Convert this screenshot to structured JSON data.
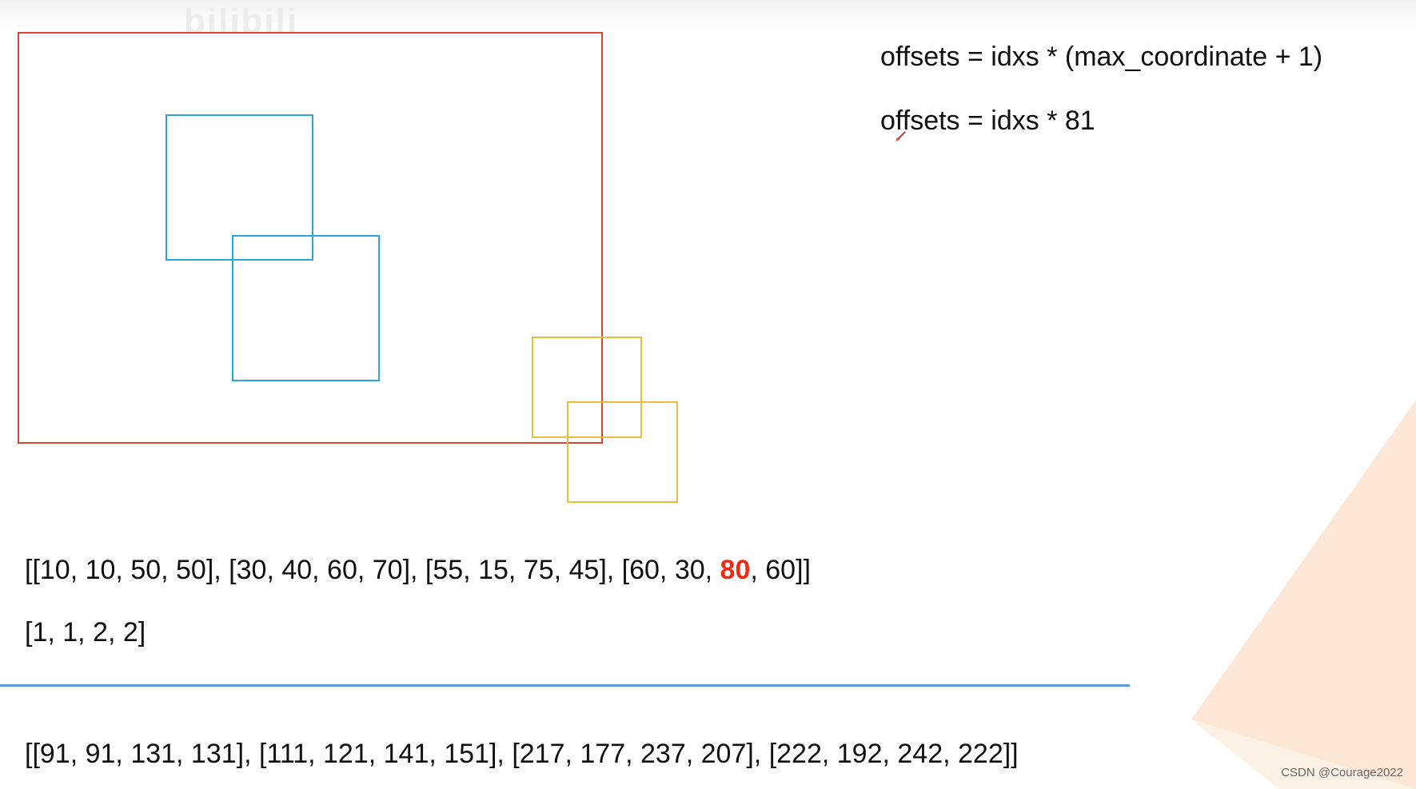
{
  "watermark": {
    "text": "bilibili"
  },
  "formulas": [
    "offsets = idxs * (max_coordinate + 1)",
    "offsets = idxs * 81"
  ],
  "boxes_line": {
    "before": "[[10, 10, 50, 50],  [30, 40, 60, 70],  [55, 15, 75, 45],  [60, 30, ",
    "highlight": "80",
    "after": ", 60]]"
  },
  "idxs_line": "[1,  1,  2,  2]",
  "result_line": "[[91, 91, 131, 131],  [111, 121, 141, 151],  [217, 177, 237, 207],  [222, 192, 242, 222]]",
  "credit": "CSDN @Courage2022",
  "colors": {
    "image_border": "#d9452f",
    "class1_boxes": "#2aa4dc",
    "class2_boxes": "#ecbd3c",
    "highlight": "#ee2a10",
    "divider": "#5b9bd5",
    "decoration": "#fbe3cf"
  },
  "icons": {
    "cursor": "pen-cursor-icon"
  }
}
